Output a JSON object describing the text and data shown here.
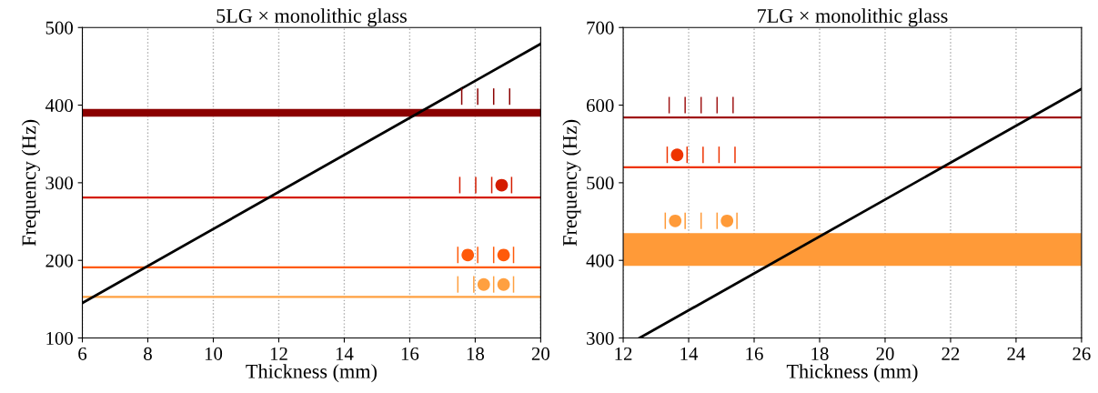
{
  "chart_data": [
    {
      "type": "line",
      "title": "5LG × monolithic glass",
      "xlabel": "Thickness (mm)",
      "ylabel": "Frequency (Hz)",
      "xlim": [
        6,
        20
      ],
      "xticks": [
        6,
        8,
        10,
        12,
        14,
        16,
        18,
        20
      ],
      "ylim": [
        100,
        500
      ],
      "yticks": [
        100,
        200,
        300,
        400,
        500
      ],
      "grid": "x",
      "series": [
        {
          "color": "#000000",
          "x": [
            6,
            20
          ],
          "values": [
            145,
            479
          ]
        }
      ],
      "bands": [
        {
          "axis": "y",
          "from": 385,
          "to": 395,
          "color": "#8b0000"
        }
      ],
      "ref_lines": [
        {
          "axis": "y",
          "value": 281,
          "color": "#d41c00"
        },
        {
          "axis": "y",
          "value": 191,
          "color": "#ff5a0a"
        },
        {
          "axis": "y",
          "value": 153,
          "color": "#ffa040"
        }
      ],
      "annotations": [
        "|  |  |  |",
        "|  |  |●|",
        "|●|  |●|",
        "|  |●|●|"
      ]
    },
    {
      "type": "line",
      "title": "7LG × monolithic glass",
      "xlabel": "Thickness (mm)",
      "ylabel": "Frequency (Hz)",
      "xlim": [
        12,
        26
      ],
      "xticks": [
        12,
        14,
        16,
        18,
        20,
        22,
        24,
        26
      ],
      "ylim": [
        300,
        700
      ],
      "yticks": [
        300,
        400,
        500,
        600,
        700
      ],
      "grid": "x",
      "series": [
        {
          "color": "#000000",
          "x": [
            12.5,
            26
          ],
          "values": [
            300,
            621
          ]
        }
      ],
      "bands": [
        {
          "axis": "y",
          "from": 393,
          "to": 435,
          "color": "#ff9a38"
        }
      ],
      "ref_lines": [
        {
          "axis": "y",
          "value": 584,
          "color": "#a01515"
        },
        {
          "axis": "y",
          "value": 520,
          "color": "#ee3300"
        }
      ],
      "annotations": [
        "|  |  |  |  |",
        "|●|  |  |  |",
        "|●|  |  |●|"
      ]
    }
  ]
}
